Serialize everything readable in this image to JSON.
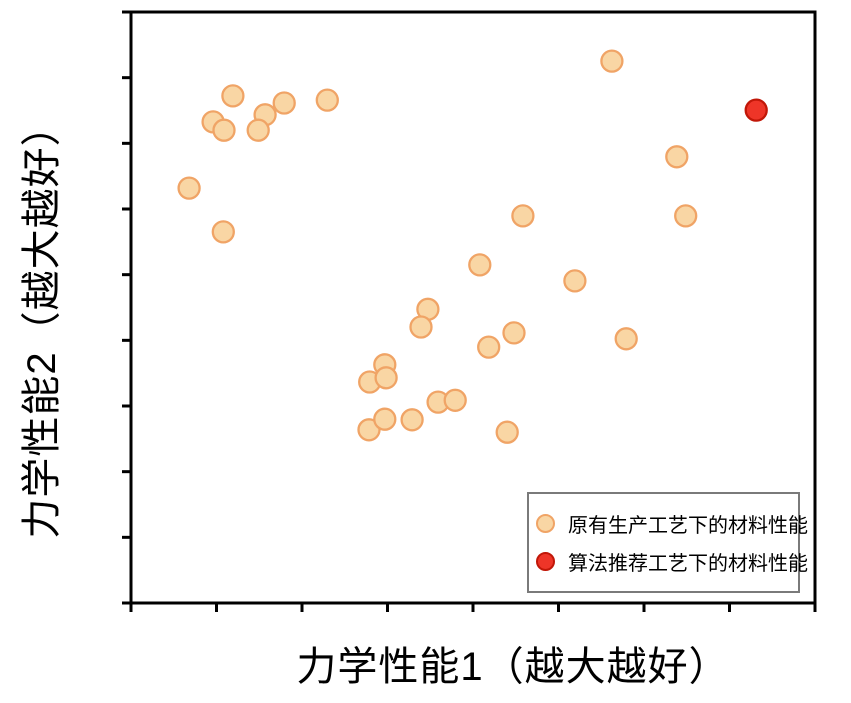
{
  "figure": {
    "background": "#ffffff",
    "frame_color": "#000000"
  },
  "chart_data": {
    "type": "scatter",
    "title": "",
    "xlabel": "力学性能1（越大越好）",
    "ylabel": "力学性能2（越大越好）",
    "xlim": [
      0,
      100
    ],
    "ylim": [
      0,
      100
    ],
    "axis_units": "arbitrary — tick marks shown without numeric labels",
    "x_tick_count": 9,
    "y_tick_count": 10,
    "tick_labels_shown": false,
    "grid": false,
    "legend_position": "lower-right inside axes",
    "series": [
      {
        "name": "原有生产工艺下的材料性能",
        "marker_fill": "#F9D6A4",
        "marker_stroke": "#F0A466",
        "points": [
          [
            14.9,
            85.8
          ],
          [
            22.4,
            84.6
          ],
          [
            28.7,
            85.1
          ],
          [
            12.0,
            81.4
          ],
          [
            13.6,
            80.0
          ],
          [
            19.6,
            82.6
          ],
          [
            18.6,
            80.0
          ],
          [
            8.5,
            70.2
          ],
          [
            13.5,
            62.8
          ],
          [
            70.3,
            91.7
          ],
          [
            79.8,
            75.5
          ],
          [
            57.3,
            65.5
          ],
          [
            81.1,
            65.5
          ],
          [
            51.0,
            57.2
          ],
          [
            64.9,
            54.5
          ],
          [
            43.4,
            49.7
          ],
          [
            42.4,
            46.7
          ],
          [
            52.3,
            43.3
          ],
          [
            56.0,
            45.7
          ],
          [
            72.4,
            44.7
          ],
          [
            37.1,
            40.3
          ],
          [
            34.9,
            37.4
          ],
          [
            37.3,
            38.1
          ],
          [
            44.9,
            34.0
          ],
          [
            47.4,
            34.3
          ],
          [
            34.8,
            29.3
          ],
          [
            37.1,
            31.1
          ],
          [
            41.1,
            31.0
          ],
          [
            55.0,
            28.9
          ]
        ]
      },
      {
        "name": "算法推荐工艺下的材料性能",
        "marker_fill": "#EE3528",
        "marker_stroke": "#C11708",
        "points": [
          [
            91.4,
            83.4
          ]
        ]
      }
    ]
  },
  "legend": {
    "items": [
      {
        "label": "原有生产工艺下的材料性能"
      },
      {
        "label": "算法推荐工艺下的材料性能"
      }
    ]
  }
}
